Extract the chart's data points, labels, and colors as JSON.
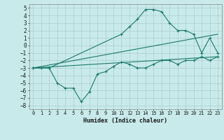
{
  "title": "",
  "xlabel": "Humidex (Indice chaleur)",
  "xlim": [
    -0.5,
    23.5
  ],
  "ylim": [
    -8.5,
    5.5
  ],
  "xticks": [
    0,
    1,
    2,
    3,
    4,
    5,
    6,
    7,
    8,
    9,
    10,
    11,
    12,
    13,
    14,
    15,
    16,
    17,
    18,
    19,
    20,
    21,
    22,
    23
  ],
  "yticks": [
    -8,
    -7,
    -6,
    -5,
    -4,
    -3,
    -2,
    -1,
    0,
    1,
    2,
    3,
    4,
    5
  ],
  "bg_color": "#c8eaea",
  "grid_color": "#aacccc",
  "line_color": "#1a7a6e",
  "line1_x": [
    0,
    1,
    2,
    3,
    4,
    5,
    6,
    7,
    8,
    9,
    10,
    11,
    12,
    13,
    14,
    15,
    16,
    17,
    18,
    19,
    20,
    21,
    22,
    23
  ],
  "line1_y": [
    -3,
    -3,
    -3,
    -5,
    -5.7,
    -5.7,
    -7.5,
    -6.2,
    -3.8,
    -3.5,
    -2.8,
    -2.2,
    -2.5,
    -3,
    -3,
    -2.5,
    -2,
    -2,
    -2.5,
    -2,
    -2,
    -1.5,
    -2,
    -1.5
  ],
  "line2_x": [
    0,
    2,
    11,
    12,
    13,
    14,
    15,
    16,
    17,
    18,
    19,
    20,
    21,
    22,
    23
  ],
  "line2_y": [
    -3,
    -3,
    1.5,
    2.5,
    3.5,
    4.8,
    4.8,
    4.5,
    3.0,
    2.0,
    2.0,
    1.5,
    -1.0,
    1.0,
    -1.0
  ],
  "line3_x": [
    0,
    23
  ],
  "line3_y": [
    -3,
    1.5
  ],
  "line4_x": [
    0,
    23
  ],
  "line4_y": [
    -3,
    -1.5
  ]
}
